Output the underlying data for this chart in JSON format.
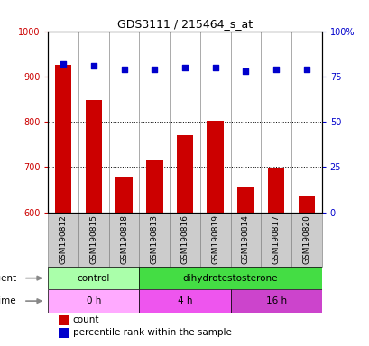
{
  "title": "GDS3111 / 215464_s_at",
  "samples": [
    "GSM190812",
    "GSM190815",
    "GSM190818",
    "GSM190813",
    "GSM190816",
    "GSM190819",
    "GSM190814",
    "GSM190817",
    "GSM190820"
  ],
  "counts": [
    925,
    848,
    678,
    715,
    770,
    802,
    655,
    697,
    635
  ],
  "percentile_ranks": [
    82,
    81,
    79,
    79,
    80,
    80,
    78,
    79,
    79
  ],
  "ylim_left": [
    600,
    1000
  ],
  "ylim_right": [
    0,
    100
  ],
  "yticks_left": [
    600,
    700,
    800,
    900,
    1000
  ],
  "yticks_right": [
    0,
    25,
    50,
    75,
    100
  ],
  "bar_color": "#cc0000",
  "dot_color": "#0000cc",
  "agent_labels": [
    {
      "text": "control",
      "start": 0,
      "end": 3,
      "color": "#aaffaa"
    },
    {
      "text": "dihydrotestosterone",
      "start": 3,
      "end": 9,
      "color": "#44dd44"
    }
  ],
  "time_labels": [
    {
      "text": "0 h",
      "start": 0,
      "end": 3,
      "color": "#ffaaff"
    },
    {
      "text": "4 h",
      "start": 3,
      "end": 6,
      "color": "#ee55ee"
    },
    {
      "text": "16 h",
      "start": 6,
      "end": 9,
      "color": "#cc44cc"
    }
  ],
  "legend_count_color": "#cc0000",
  "legend_dot_color": "#0000cc",
  "background_color": "#ffffff",
  "cell_color": "#cccccc",
  "cell_edge_color": "#888888",
  "figsize": [
    4.1,
    3.84
  ],
  "dpi": 100
}
